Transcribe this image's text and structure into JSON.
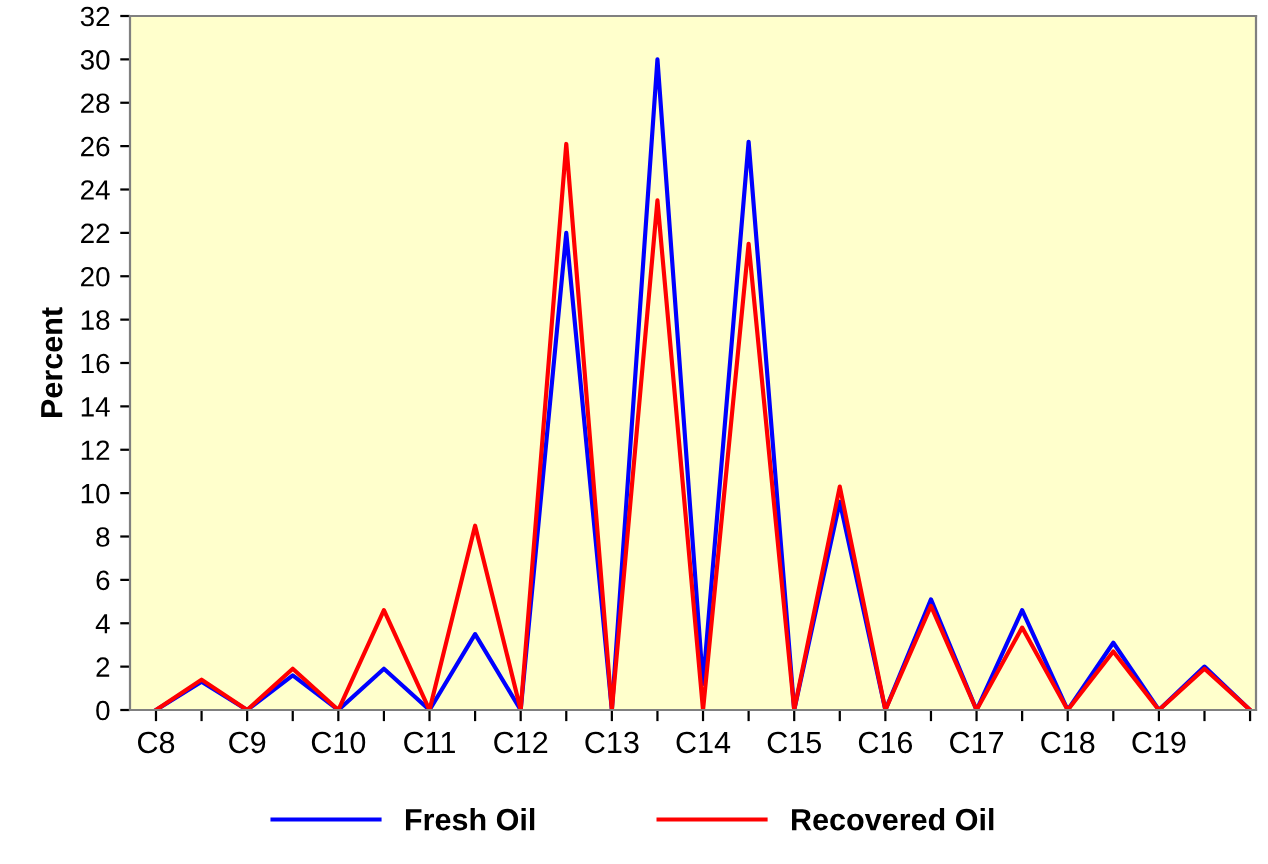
{
  "chart_data": {
    "type": "line",
    "ylabel": "Percent",
    "categories": [
      "C8",
      null,
      "C9",
      null,
      "C10",
      null,
      "C11",
      null,
      "C12",
      null,
      "C13",
      null,
      "C14",
      null,
      "C15",
      null,
      "C16",
      null,
      "C17",
      null,
      "C18",
      null,
      "C19",
      null,
      null
    ],
    "series": [
      {
        "name": "Fresh Oil",
        "color": "#0000ff",
        "values": [
          0,
          1.3,
          0,
          1.6,
          0,
          1.9,
          0,
          3.5,
          0,
          22,
          0,
          30,
          1.2,
          26.2,
          0,
          9.6,
          0,
          5.1,
          0,
          4.6,
          0,
          3.1,
          0,
          2.0,
          0
        ]
      },
      {
        "name": "Recovered Oil",
        "color": "#ff0000",
        "values": [
          0,
          1.4,
          0,
          1.9,
          0,
          4.6,
          0,
          8.5,
          0,
          26.1,
          0,
          23.5,
          0,
          21.5,
          0,
          10.3,
          0,
          4.8,
          0,
          3.8,
          0,
          2.7,
          0,
          1.9,
          0
        ]
      }
    ],
    "ylim": [
      0,
      32
    ],
    "yticks": [
      0,
      2,
      4,
      6,
      8,
      10,
      12,
      14,
      16,
      18,
      20,
      22,
      24,
      26,
      28,
      30,
      32
    ],
    "legend": "bottom",
    "grid": false
  }
}
